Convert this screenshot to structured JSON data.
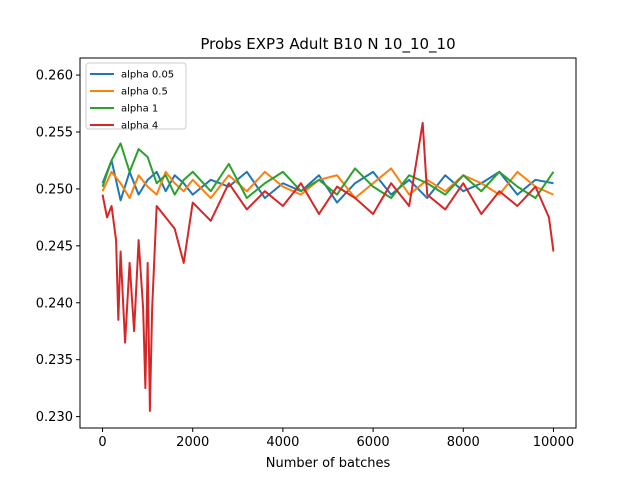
{
  "chart_data": {
    "type": "line",
    "title": "Probs EXP3 Adult B10 N 10_10_10",
    "xlabel": "Number of batches",
    "ylabel": "",
    "xlim": [
      -500,
      10500
    ],
    "ylim": [
      0.229,
      0.2615
    ],
    "x_ticks": [
      0,
      2000,
      4000,
      6000,
      8000,
      10000
    ],
    "x_tick_labels": [
      "0",
      "2000",
      "4000",
      "6000",
      "8000",
      "10000"
    ],
    "y_ticks": [
      0.23,
      0.235,
      0.24,
      0.245,
      0.25,
      0.255,
      0.26
    ],
    "y_tick_labels": [
      "0.230",
      "0.235",
      "0.240",
      "0.245",
      "0.250",
      "0.255",
      "0.260"
    ],
    "grid": false,
    "legend_position": "top-left",
    "series": [
      {
        "name": "alpha 0.05",
        "color": "#1f77b4",
        "x": [
          0,
          200,
          400,
          600,
          800,
          1000,
          1200,
          1400,
          1600,
          1800,
          2000,
          2400,
          2800,
          3200,
          3600,
          4000,
          4400,
          4800,
          5200,
          5600,
          6000,
          6400,
          6800,
          7200,
          7600,
          8000,
          8400,
          8800,
          9200,
          9600,
          10000
        ],
        "y": [
          0.2505,
          0.2525,
          0.249,
          0.2515,
          0.2495,
          0.2508,
          0.2515,
          0.2498,
          0.2512,
          0.2505,
          0.2495,
          0.2508,
          0.2502,
          0.2515,
          0.2492,
          0.2505,
          0.2498,
          0.2512,
          0.2488,
          0.2505,
          0.2515,
          0.2495,
          0.2508,
          0.2492,
          0.2512,
          0.2498,
          0.2505,
          0.2515,
          0.2495,
          0.2508,
          0.2505
        ]
      },
      {
        "name": "alpha 0.5",
        "color": "#ff7f0e",
        "x": [
          0,
          200,
          400,
          600,
          800,
          1000,
          1200,
          1400,
          1600,
          1800,
          2000,
          2400,
          2800,
          3200,
          3600,
          4000,
          4400,
          4800,
          5200,
          5600,
          6000,
          6400,
          6800,
          7200,
          7600,
          8000,
          8400,
          8800,
          9200,
          9600,
          10000
        ],
        "y": [
          0.2498,
          0.2515,
          0.2505,
          0.2492,
          0.2512,
          0.2502,
          0.2495,
          0.2515,
          0.2505,
          0.2498,
          0.2508,
          0.2492,
          0.2512,
          0.2498,
          0.2515,
          0.2502,
          0.2495,
          0.2508,
          0.2512,
          0.2492,
          0.2505,
          0.2518,
          0.2495,
          0.2508,
          0.2498,
          0.2512,
          0.2505,
          0.2495,
          0.2515,
          0.2502,
          0.2495
        ]
      },
      {
        "name": "alpha 1",
        "color": "#2ca02c",
        "x": [
          0,
          200,
          400,
          600,
          800,
          1000,
          1200,
          1400,
          1600,
          1800,
          2000,
          2400,
          2800,
          3200,
          3600,
          4000,
          4400,
          4800,
          5200,
          5600,
          6000,
          6400,
          6800,
          7200,
          7600,
          8000,
          8400,
          8800,
          9200,
          9600,
          10000
        ],
        "y": [
          0.2502,
          0.2525,
          0.254,
          0.2515,
          0.2535,
          0.2528,
          0.2505,
          0.2512,
          0.2495,
          0.2508,
          0.2515,
          0.2498,
          0.2522,
          0.2492,
          0.2505,
          0.2515,
          0.2498,
          0.2508,
          0.2495,
          0.2518,
          0.2502,
          0.2492,
          0.2512,
          0.2505,
          0.2495,
          0.2512,
          0.2498,
          0.2515,
          0.2502,
          0.2492,
          0.2515
        ]
      },
      {
        "name": "alpha 4",
        "color": "#d62728",
        "x": [
          0,
          100,
          200,
          300,
          350,
          400,
          500,
          600,
          700,
          800,
          900,
          950,
          1000,
          1050,
          1100,
          1200,
          1400,
          1600,
          1800,
          2000,
          2400,
          2800,
          3200,
          3600,
          4000,
          4400,
          4800,
          5200,
          5600,
          6000,
          6400,
          6800,
          7100,
          7200,
          7600,
          8000,
          8400,
          8800,
          9200,
          9600,
          9900,
          10000
        ],
        "y": [
          0.2495,
          0.2475,
          0.2485,
          0.2455,
          0.2385,
          0.2445,
          0.2365,
          0.2435,
          0.2375,
          0.2455,
          0.2395,
          0.2325,
          0.2435,
          0.2305,
          0.2395,
          0.2485,
          0.2475,
          0.2465,
          0.2435,
          0.2488,
          0.2472,
          0.2505,
          0.2482,
          0.2498,
          0.2485,
          0.2505,
          0.2478,
          0.2502,
          0.2492,
          0.2478,
          0.2505,
          0.2485,
          0.2558,
          0.2495,
          0.2482,
          0.2505,
          0.2478,
          0.2498,
          0.2485,
          0.2502,
          0.2475,
          0.2445
        ]
      }
    ]
  }
}
